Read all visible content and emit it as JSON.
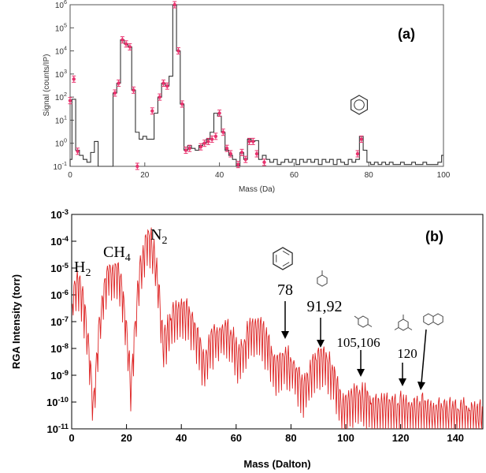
{
  "colors": {
    "trace_a": "#333333",
    "points_a": "#e8336e",
    "trace_b": "#dd2222",
    "axis": "#000000"
  },
  "chart_data": [
    {
      "type": "line",
      "panel_label": "(a)",
      "xlabel": "Mass (Da)",
      "ylabel": "Signal (counts/IP)",
      "xlim": [
        0,
        100
      ],
      "ylim": [
        0.1,
        1000000
      ],
      "yscale": "log",
      "x_ticks": [
        "0",
        "20",
        "40",
        "60",
        "80",
        "100"
      ],
      "y_ticks": [
        "10-1",
        "100",
        "101",
        "102",
        "103",
        "104",
        "105",
        "106"
      ],
      "grid": false,
      "series": [
        {
          "style": "step",
          "x": [
            0,
            1,
            2,
            3,
            4,
            5,
            6,
            7,
            8,
            9,
            10,
            11,
            12,
            13,
            14,
            15,
            16,
            17,
            18,
            19,
            20,
            21,
            22,
            23,
            24,
            25,
            26,
            27,
            28,
            29,
            30,
            31,
            32,
            33,
            34,
            35,
            36,
            37,
            38,
            39,
            40,
            41,
            42,
            43,
            44,
            45,
            46,
            47,
            48,
            49,
            50,
            51,
            52,
            53,
            54,
            55,
            56,
            57,
            58,
            59,
            60,
            61,
            62,
            63,
            64,
            65,
            66,
            67,
            68,
            69,
            70,
            71,
            72,
            73,
            74,
            75,
            76,
            77,
            78,
            79,
            80,
            81,
            82,
            83,
            84,
            85,
            86,
            87,
            88,
            89,
            90,
            91,
            92,
            93,
            94,
            95,
            96,
            97,
            98,
            99,
            100
          ],
          "y": [
            0.2,
            80,
            0.5,
            0.3,
            0.2,
            0.15,
            0.4,
            1.2,
            0.1,
            0.1,
            0.1,
            0.1,
            150,
            400,
            30000,
            20000,
            15000,
            200,
            3,
            1.5,
            2,
            1.5,
            1.5,
            20,
            100,
            400,
            300,
            800,
            1000000,
            10000,
            50,
            0.5,
            0.8,
            0.6,
            0.5,
            0.8,
            1,
            1.5,
            3,
            20,
            15,
            3,
            0.5,
            0.3,
            0.2,
            0.1,
            0.4,
            0.2,
            1.5,
            1.2,
            1.3,
            0.2,
            0.3,
            0.2,
            0.15,
            0.2,
            0.12,
            0.15,
            0.2,
            0.15,
            0.2,
            0.12,
            0.2,
            0.15,
            0.2,
            0.15,
            0.2,
            0.12,
            0.2,
            0.15,
            0.2,
            0.12,
            0.2,
            0.15,
            0.12,
            0.2,
            0.15,
            0.2,
            2,
            0.5,
            0.15,
            0.12,
            0.15,
            0.12,
            0.15,
            0.12,
            0.15,
            0.12,
            0.12,
            0.15,
            0.12,
            0.12,
            0.15,
            0.12,
            0.12,
            0.15,
            0.12,
            0.12,
            0.12,
            0.15,
            0.3
          ]
        },
        {
          "style": "points",
          "x": [
            0,
            1,
            2,
            12,
            13,
            14,
            15,
            16,
            17,
            18,
            22,
            24,
            25,
            26,
            28,
            29,
            30,
            31,
            32,
            35,
            36,
            37,
            38,
            39,
            40,
            41,
            42,
            43,
            45,
            46,
            47,
            48,
            49,
            50,
            52,
            77,
            78
          ],
          "y": [
            70,
            600,
            0.45,
            150,
            400,
            30000,
            20000,
            15000,
            200,
            0.1,
            25,
            100,
            400,
            300,
            1000000,
            10000,
            50,
            0.5,
            0.6,
            0.7,
            1,
            1.2,
            1.5,
            2,
            20,
            3,
            0.6,
            0.35,
            0.12,
            0.4,
            0.2,
            1.2,
            1.2,
            0.35,
            0.15,
            0.35,
            1.5
          ]
        }
      ]
    },
    {
      "type": "line",
      "panel_label": "(b)",
      "xlabel": "Mass (Dalton)",
      "ylabel": "RGA Intensity (torr)",
      "xlim": [
        0,
        150
      ],
      "ylim": [
        1e-11,
        0.001
      ],
      "yscale": "log",
      "x_ticks": [
        "0",
        "20",
        "40",
        "60",
        "80",
        "100",
        "120",
        "140"
      ],
      "y_ticks": [
        "10-11",
        "10-10",
        "10-9",
        "10-8",
        "10-7",
        "10-6",
        "10-5",
        "10-4",
        "10-3"
      ],
      "grid": false,
      "peaks": [
        {
          "x": 2,
          "y": 1e-05
        },
        {
          "x": 14,
          "y": 3e-05
        },
        {
          "x": 16,
          "y": 3e-05
        },
        {
          "x": 28,
          "y": 0.0005
        },
        {
          "x": 40,
          "y": 1e-06
        },
        {
          "x": 55,
          "y": 2e-07
        },
        {
          "x": 67,
          "y": 2e-07
        },
        {
          "x": 78,
          "y": 1.5e-08
        },
        {
          "x": 91,
          "y": 1.5e-08
        },
        {
          "x": 105,
          "y": 8e-10
        },
        {
          "x": 120,
          "y": 3e-10
        },
        {
          "x": 128,
          "y": 3e-10
        }
      ],
      "annotations": [
        {
          "id": "h2",
          "text": "H2",
          "main": "H",
          "sub": "2"
        },
        {
          "id": "ch4",
          "text": "CH4",
          "main": "CH",
          "sub": "4"
        },
        {
          "id": "n2",
          "text": "N2",
          "main": "N",
          "sub": "2"
        },
        {
          "id": "m78",
          "text": "78"
        },
        {
          "id": "m91",
          "text": "91,92"
        },
        {
          "id": "m105",
          "text": "105,106"
        },
        {
          "id": "m120",
          "text": "120"
        }
      ]
    }
  ]
}
